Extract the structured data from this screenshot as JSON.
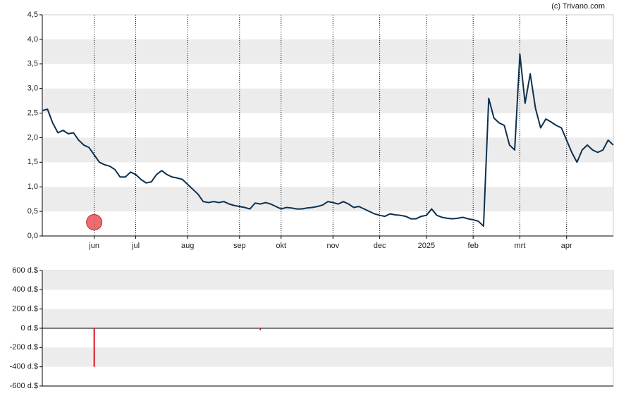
{
  "chart_data": [
    {
      "type": "line",
      "credit": "(c) Trivano.com",
      "categories": [
        null,
        null,
        null,
        null,
        null,
        null,
        null,
        null,
        null,
        null,
        "jun",
        null,
        null,
        null,
        null,
        null,
        null,
        null,
        "jul",
        null,
        null,
        null,
        null,
        null,
        null,
        null,
        null,
        null,
        "aug",
        null,
        null,
        null,
        null,
        null,
        null,
        null,
        null,
        null,
        "sep",
        null,
        null,
        null,
        null,
        null,
        null,
        null,
        "okt",
        null,
        null,
        null,
        null,
        null,
        null,
        null,
        null,
        null,
        "nov",
        null,
        null,
        null,
        null,
        null,
        null,
        null,
        null,
        "dec",
        null,
        null,
        null,
        null,
        null,
        null,
        null,
        null,
        "2025",
        null,
        null,
        null,
        null,
        null,
        null,
        null,
        null,
        "feb",
        null,
        null,
        null,
        null,
        null,
        null,
        null,
        null,
        "mrt",
        null,
        null,
        null,
        null,
        null,
        null,
        null,
        null,
        "apr",
        null,
        null,
        null,
        null,
        null,
        null,
        null,
        null,
        null
      ],
      "series": [
        {
          "color": "#0d3050",
          "style": "line",
          "values": [
            2.55,
            2.58,
            2.3,
            2.1,
            2.15,
            2.08,
            2.1,
            1.95,
            1.85,
            1.8,
            1.65,
            1.5,
            1.45,
            1.42,
            1.35,
            1.2,
            1.2,
            1.3,
            1.25,
            1.15,
            1.08,
            1.1,
            1.25,
            1.33,
            1.25,
            1.2,
            1.18,
            1.15,
            1.05,
            0.95,
            0.85,
            0.7,
            0.68,
            0.7,
            0.68,
            0.7,
            0.65,
            0.62,
            0.6,
            0.58,
            0.55,
            0.67,
            0.65,
            0.68,
            0.65,
            0.6,
            0.55,
            0.58,
            0.57,
            0.55,
            0.55,
            0.57,
            0.58,
            0.6,
            0.63,
            0.7,
            0.68,
            0.65,
            0.7,
            0.65,
            0.58,
            0.6,
            0.55,
            0.5,
            0.45,
            0.42,
            0.4,
            0.45,
            0.43,
            0.42,
            0.4,
            0.35,
            0.35,
            0.4,
            0.42,
            0.55,
            0.42,
            0.38,
            0.36,
            0.35,
            0.36,
            0.38,
            0.35,
            0.33,
            0.3,
            0.2,
            2.8,
            2.4,
            2.3,
            2.25,
            1.85,
            1.75,
            3.7,
            2.7,
            3.3,
            2.6,
            2.2,
            2.38,
            2.32,
            2.25,
            2.2,
            1.95,
            1.7,
            1.5,
            1.75,
            1.85,
            1.75,
            1.7,
            1.75,
            1.95,
            1.85
          ]
        },
        {
          "color": "#e8474c",
          "style": "marker",
          "values": [
            null,
            null,
            null,
            null,
            null,
            null,
            null,
            null,
            null,
            null,
            0.28,
            null,
            null,
            null,
            null,
            null,
            null,
            null,
            null,
            null,
            null,
            null,
            null,
            null,
            null,
            null,
            null,
            null,
            null,
            null,
            null,
            null,
            null,
            null,
            null,
            null,
            null,
            null,
            null,
            null,
            null,
            null,
            null,
            null,
            null,
            null,
            null,
            null,
            null,
            null,
            null,
            null,
            null,
            null,
            null,
            null,
            null,
            null,
            null,
            null,
            null,
            null,
            null,
            null,
            null,
            null,
            null,
            null,
            null,
            null,
            null,
            null,
            null,
            null,
            null,
            null,
            null,
            null,
            null,
            null,
            null,
            null,
            null,
            null,
            null,
            null,
            null,
            null,
            null,
            null,
            null,
            null,
            null,
            null,
            null,
            null,
            null,
            null,
            null,
            null,
            null,
            null,
            null,
            null,
            null,
            null,
            null,
            null,
            null,
            null,
            null
          ]
        }
      ],
      "ylim": [
        0,
        4.5
      ],
      "yticks": [
        {
          "value": 0,
          "label": "0,0"
        },
        {
          "value": 0.5,
          "label": "0,5"
        },
        {
          "value": 1,
          "label": "1,0"
        },
        {
          "value": 1.5,
          "label": "1,5"
        },
        {
          "value": 2,
          "label": "2,0"
        },
        {
          "value": 2.5,
          "label": "2,5"
        },
        {
          "value": 3,
          "label": "3,0"
        },
        {
          "value": 3.5,
          "label": "3,5"
        },
        {
          "value": 4,
          "label": "4,0"
        },
        {
          "value": 4.5,
          "label": "4,5"
        }
      ],
      "grid": "bands",
      "xgrid": true
    },
    {
      "type": "bar",
      "categories": [
        null,
        null,
        null,
        null,
        null,
        null,
        null,
        null,
        null,
        null,
        null,
        null,
        null,
        null,
        null,
        null,
        null,
        null,
        null,
        null,
        null,
        null,
        null,
        null,
        null,
        null,
        null,
        null,
        null,
        null,
        null,
        null,
        null,
        null,
        null,
        null,
        null,
        null,
        null,
        null,
        null,
        null,
        null,
        null,
        null,
        null,
        null,
        null,
        null,
        null,
        null,
        null,
        null,
        null,
        null,
        null,
        null,
        null,
        null,
        null,
        null,
        null,
        null,
        null,
        null,
        null,
        null,
        null,
        null,
        null,
        null,
        null,
        null,
        null,
        null,
        null,
        null,
        null,
        null,
        null,
        null,
        null,
        null,
        null,
        null,
        null,
        null,
        null,
        null,
        null,
        null,
        null,
        null,
        null,
        null,
        null,
        null,
        null,
        null,
        null,
        null,
        null,
        null,
        null,
        null,
        null,
        null,
        null,
        null,
        null,
        null
      ],
      "color": "#e01020",
      "values": [
        null,
        null,
        null,
        null,
        null,
        null,
        null,
        null,
        null,
        null,
        -400,
        null,
        null,
        null,
        null,
        null,
        null,
        null,
        null,
        null,
        null,
        null,
        null,
        null,
        null,
        null,
        null,
        null,
        null,
        null,
        null,
        null,
        null,
        null,
        null,
        null,
        null,
        null,
        null,
        null,
        null,
        null,
        -20,
        null,
        null,
        null,
        null,
        null,
        null,
        null,
        null,
        null,
        null,
        null,
        null,
        null,
        null,
        null,
        null,
        null,
        null,
        null,
        null,
        null,
        null,
        null,
        null,
        null,
        null,
        null,
        null,
        null,
        null,
        null,
        null,
        null,
        null,
        null,
        null,
        null,
        null,
        null,
        null,
        null,
        null,
        null,
        null,
        null,
        null,
        null,
        null,
        null,
        null,
        null,
        null,
        null,
        null,
        null,
        null,
        null,
        null,
        null,
        null,
        null,
        null,
        null,
        null,
        null,
        null,
        null,
        null
      ],
      "ylim": [
        -600,
        600
      ],
      "yticks": [
        {
          "value": -600,
          "label": "-600 d.$"
        },
        {
          "value": -400,
          "label": "-400 d.$"
        },
        {
          "value": -200,
          "label": "-200 d.$"
        },
        {
          "value": 0,
          "label": "0 d.$"
        },
        {
          "value": 200,
          "label": "200 d.$"
        },
        {
          "value": 400,
          "label": "400 d.$"
        },
        {
          "value": 600,
          "label": "600 d.$"
        }
      ],
      "grid": "bands",
      "zero_line": true
    }
  ]
}
